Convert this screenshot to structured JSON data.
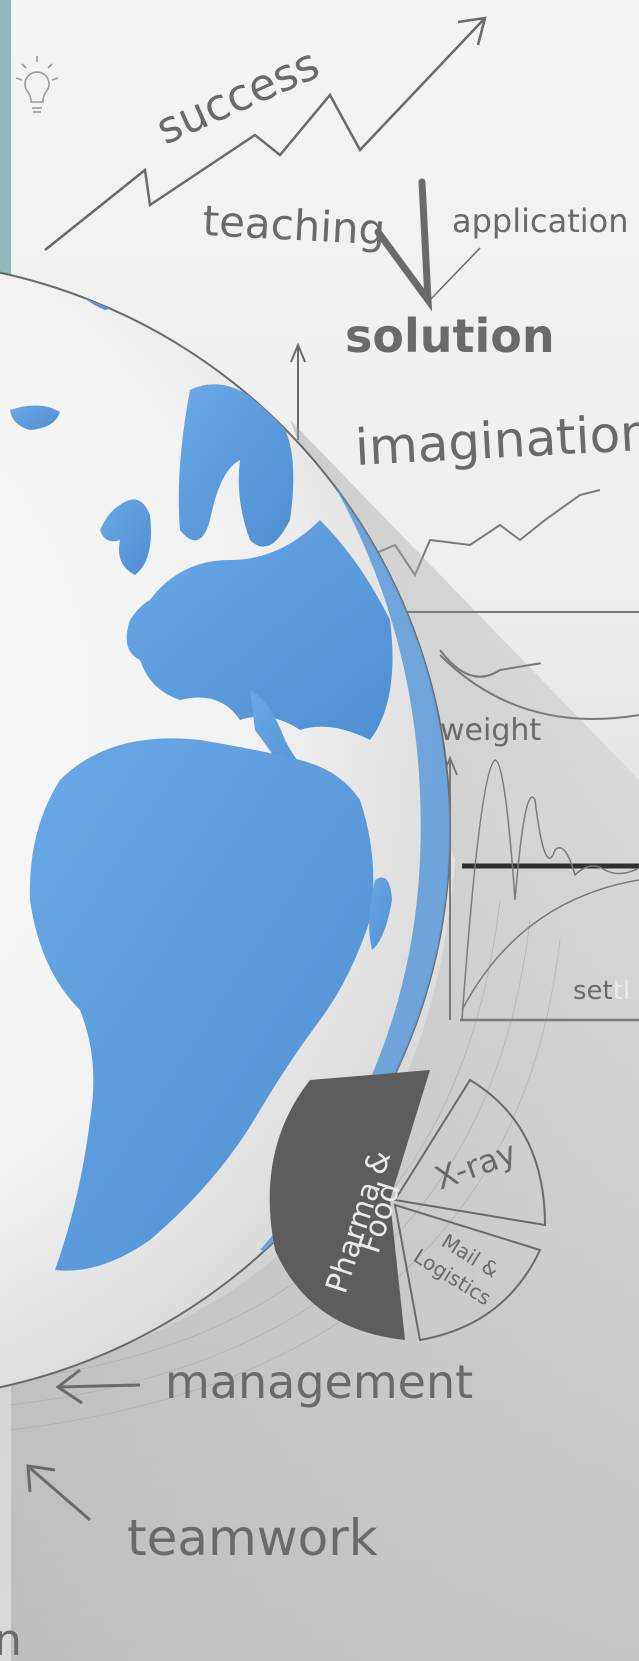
{
  "words": {
    "success": "success",
    "teaching": "teaching",
    "application": "application",
    "solution": "solution",
    "imagination": "imagination",
    "weight": "weight",
    "settle_a": "set",
    "settle_b": "tl",
    "management": "management",
    "teamwork": "teamwork",
    "edge_letter": "n"
  },
  "pie": {
    "dark_slice_line1": "Pharma &",
    "dark_slice_line2": "Food",
    "xray": "X-ray",
    "mail_line1": "Mail &",
    "mail_line2": "Logistics"
  },
  "icons": [
    "lightbulb-icon",
    "globe-icon",
    "arrow-icon"
  ],
  "colors": {
    "teal_strip": "#8fb8b8",
    "ocean_blue": "#5a9ad8",
    "sketch_gray": "#6a6a6a",
    "dark_slice": "#5d5d5d"
  }
}
